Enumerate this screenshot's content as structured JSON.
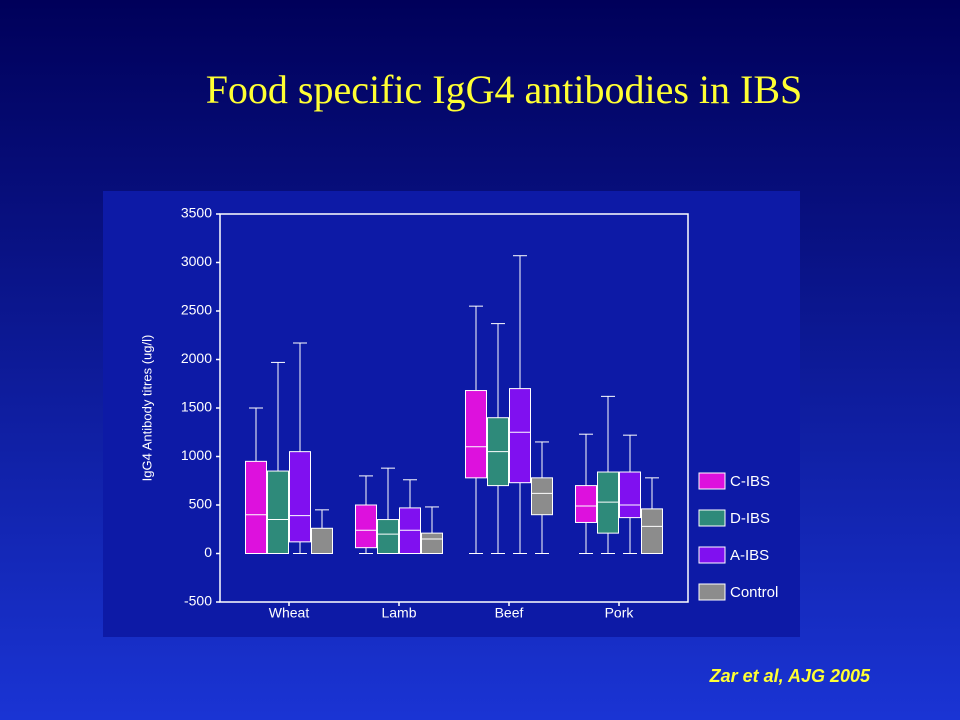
{
  "chart_data": {
    "type": "boxplot",
    "title": "Food specific IgG4 antibodies in IBS",
    "y_label": "IgG4 Antibody titres (ug/l)",
    "categories": [
      "Wheat",
      "Lamb",
      "Beef",
      "Pork"
    ],
    "series": [
      {
        "name": "C-IBS",
        "color": "#dd11dd",
        "min": [
          0,
          0,
          0,
          0
        ],
        "q1": [
          0,
          60,
          780,
          320
        ],
        "median": [
          400,
          240,
          1100,
          490
        ],
        "q3": [
          950,
          500,
          1680,
          700
        ],
        "max": [
          1500,
          800,
          2550,
          1230
        ]
      },
      {
        "name": "D-IBS",
        "color": "#2e8a7a",
        "min": [
          0,
          0,
          0,
          0
        ],
        "q1": [
          0,
          0,
          700,
          210
        ],
        "median": [
          350,
          200,
          1050,
          530
        ],
        "q3": [
          850,
          350,
          1400,
          840
        ],
        "max": [
          1970,
          880,
          2370,
          1620
        ]
      },
      {
        "name": "A-IBS",
        "color": "#8010f0",
        "min": [
          0,
          0,
          0,
          0
        ],
        "q1": [
          120,
          0,
          730,
          370
        ],
        "median": [
          390,
          240,
          1250,
          500
        ],
        "q3": [
          1050,
          470,
          1700,
          840
        ],
        "max": [
          2170,
          760,
          3070,
          1220
        ]
      },
      {
        "name": "Control",
        "color": "#8c8c8c",
        "min": [
          0,
          0,
          0,
          0
        ],
        "q1": [
          0,
          0,
          400,
          0
        ],
        "median": [
          0,
          150,
          620,
          280
        ],
        "q3": [
          260,
          210,
          780,
          460
        ],
        "max": [
          450,
          480,
          1150,
          780
        ]
      }
    ],
    "ylim": [
      -500,
      3500
    ],
    "yticks": [
      -500,
      0,
      500,
      1000,
      1500,
      2000,
      2500,
      3000,
      3500
    ],
    "grid": false,
    "legend": "right",
    "citation": "Zar et al, AJG 2005"
  }
}
